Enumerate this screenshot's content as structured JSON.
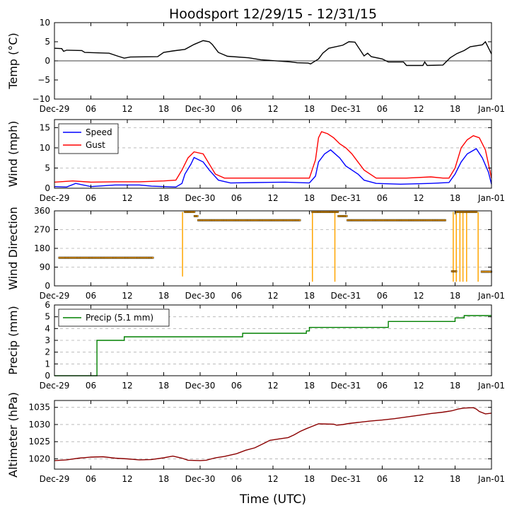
{
  "figure": {
    "title": "Hoodsport 12/29/15 - 12/31/15",
    "xlabel": "Time (UTC)"
  },
  "time_axis": {
    "range_hours": [
      0,
      72
    ],
    "ticks": [
      {
        "h": 0,
        "label": "Dec-29"
      },
      {
        "h": 6,
        "label": "06"
      },
      {
        "h": 12,
        "label": "12"
      },
      {
        "h": 18,
        "label": "18"
      },
      {
        "h": 24,
        "label": "Dec-30"
      },
      {
        "h": 30,
        "label": "06"
      },
      {
        "h": 36,
        "label": "12"
      },
      {
        "h": 42,
        "label": "18"
      },
      {
        "h": 48,
        "label": "Dec-31"
      },
      {
        "h": 54,
        "label": "06"
      },
      {
        "h": 60,
        "label": "12"
      },
      {
        "h": 66,
        "label": "18"
      },
      {
        "h": 72,
        "label": "Jan-01"
      }
    ]
  },
  "colors": {
    "temp": "#000000",
    "speed": "#0000ff",
    "gust": "#ff0000",
    "direction": "#ffa500",
    "precip": "#008000",
    "altimeter": "#8b0000",
    "grid": "#b0b0b0"
  },
  "chart_data": [
    {
      "type": "line",
      "ylabel": "Temp (°C)",
      "ylim": [
        -10,
        10
      ],
      "yticks": [
        {
          "v": 10,
          "label": "10"
        },
        {
          "v": 5,
          "label": "5"
        },
        {
          "v": 0,
          "label": "0"
        },
        {
          "v": -5,
          "label": "−5"
        },
        {
          "v": -10,
          "label": "−10"
        }
      ],
      "zero_line": true,
      "grid": false,
      "series": [
        {
          "color_key": "temp",
          "points": [
            [
              0,
              3.3
            ],
            [
              1.2,
              3.2
            ],
            [
              1.5,
              2.5
            ],
            [
              2,
              2.8
            ],
            [
              4.5,
              2.7
            ],
            [
              5,
              2.2
            ],
            [
              9,
              2.0
            ],
            [
              10.5,
              1.2
            ],
            [
              11.5,
              0.7
            ],
            [
              12.5,
              1.0
            ],
            [
              17,
              1.1
            ],
            [
              18,
              2.2
            ],
            [
              19.5,
              2.6
            ],
            [
              21.5,
              3.0
            ],
            [
              23,
              4.3
            ],
            [
              24.5,
              5.3
            ],
            [
              25.5,
              5.0
            ],
            [
              26,
              4.3
            ],
            [
              27,
              2.2
            ],
            [
              28.5,
              1.2
            ],
            [
              32,
              0.8
            ],
            [
              34,
              0.3
            ],
            [
              39,
              -0.3
            ],
            [
              40,
              -0.5
            ],
            [
              41.8,
              -0.6
            ],
            [
              42.2,
              -0.8
            ],
            [
              42.6,
              -0.4
            ],
            [
              43.5,
              0.5
            ],
            [
              44.2,
              2.0
            ],
            [
              45.2,
              3.3
            ],
            [
              47.5,
              4.1
            ],
            [
              48.5,
              5.0
            ],
            [
              49.5,
              4.9
            ],
            [
              50.3,
              3.0
            ],
            [
              51,
              1.3
            ],
            [
              51.6,
              2.0
            ],
            [
              52.2,
              1.1
            ],
            [
              54,
              0.5
            ],
            [
              55,
              -0.3
            ],
            [
              57.5,
              -0.3
            ],
            [
              58,
              -1.2
            ],
            [
              60.7,
              -1.2
            ],
            [
              61,
              -0.3
            ],
            [
              61.4,
              -1.2
            ],
            [
              64,
              -1.1
            ],
            [
              65.2,
              0.8
            ],
            [
              66.3,
              1.9
            ],
            [
              67.5,
              2.7
            ],
            [
              68.5,
              3.7
            ],
            [
              70.5,
              4.2
            ],
            [
              71,
              5.0
            ],
            [
              71.5,
              3.4
            ],
            [
              72,
              1.8
            ]
          ]
        }
      ]
    },
    {
      "type": "line",
      "ylabel": "Wind (mph)",
      "ylim": [
        0,
        17
      ],
      "yticks": [
        {
          "v": 15,
          "label": "15"
        },
        {
          "v": 10,
          "label": "10"
        },
        {
          "v": 5,
          "label": "5"
        },
        {
          "v": 0,
          "label": "0"
        }
      ],
      "grid": true,
      "legend": {
        "position": "top-left",
        "entries": [
          {
            "label": "Speed",
            "color_key": "speed"
          },
          {
            "label": "Gust",
            "color_key": "gust"
          }
        ]
      },
      "series": [
        {
          "name": "Speed",
          "color_key": "speed",
          "points": [
            [
              0,
              0.4
            ],
            [
              2,
              0.3
            ],
            [
              3.5,
              1.2
            ],
            [
              6,
              0.4
            ],
            [
              10,
              0.8
            ],
            [
              14,
              0.8
            ],
            [
              16,
              0.5
            ],
            [
              20,
              0.3
            ],
            [
              21,
              1.2
            ],
            [
              21.5,
              3.5
            ],
            [
              22.5,
              6.0
            ],
            [
              23,
              7.6
            ],
            [
              24.5,
              6.5
            ],
            [
              25.5,
              4.5
            ],
            [
              27,
              2.0
            ],
            [
              29,
              1.3
            ],
            [
              33,
              1.4
            ],
            [
              38,
              1.5
            ],
            [
              42,
              1.3
            ],
            [
              43,
              3.0
            ],
            [
              43.5,
              6.5
            ],
            [
              44.5,
              8.5
            ],
            [
              45.5,
              9.5
            ],
            [
              47,
              7.5
            ],
            [
              48,
              5.5
            ],
            [
              49,
              4.5
            ],
            [
              50,
              3.5
            ],
            [
              51,
              2.0
            ],
            [
              53,
              1.2
            ],
            [
              57,
              1.0
            ],
            [
              62,
              1.2
            ],
            [
              65,
              1.4
            ],
            [
              66,
              3.5
            ],
            [
              67,
              6.5
            ],
            [
              68,
              8.5
            ],
            [
              69.5,
              9.8
            ],
            [
              70.5,
              7.5
            ],
            [
              71.5,
              4.0
            ],
            [
              72,
              1.0
            ]
          ]
        },
        {
          "name": "Gust",
          "color_key": "gust",
          "points": [
            [
              0,
              1.5
            ],
            [
              3,
              1.8
            ],
            [
              6,
              1.5
            ],
            [
              10,
              1.6
            ],
            [
              14,
              1.6
            ],
            [
              18,
              1.8
            ],
            [
              20,
              2.0
            ],
            [
              21,
              4.5
            ],
            [
              22,
              7.5
            ],
            [
              23,
              9.0
            ],
            [
              24.5,
              8.5
            ],
            [
              25.5,
              6.0
            ],
            [
              26.5,
              3.5
            ],
            [
              28,
              2.5
            ],
            [
              33,
              2.5
            ],
            [
              38,
              2.5
            ],
            [
              42,
              2.5
            ],
            [
              43,
              7.0
            ],
            [
              43.5,
              12.5
            ],
            [
              44,
              14.0
            ],
            [
              45,
              13.5
            ],
            [
              46,
              12.5
            ],
            [
              47,
              11.0
            ],
            [
              48,
              10.0
            ],
            [
              49,
              8.5
            ],
            [
              50,
              6.5
            ],
            [
              51,
              4.5
            ],
            [
              53,
              2.5
            ],
            [
              58,
              2.5
            ],
            [
              62,
              2.8
            ],
            [
              64,
              2.5
            ],
            [
              65,
              2.5
            ],
            [
              66,
              5.0
            ],
            [
              67,
              10.0
            ],
            [
              68,
              12.0
            ],
            [
              69,
              13.0
            ],
            [
              70,
              12.5
            ],
            [
              71,
              9.5
            ],
            [
              72,
              2.5
            ]
          ]
        }
      ]
    },
    {
      "type": "scatter",
      "ylabel": "Wind Direction",
      "ylim": [
        0,
        360
      ],
      "yticks": [
        {
          "v": 360,
          "label": "360"
        },
        {
          "v": 270,
          "label": "270"
        },
        {
          "v": 180,
          "label": "180"
        },
        {
          "v": 90,
          "label": "90"
        },
        {
          "v": 0,
          "label": "0"
        }
      ],
      "grid": true,
      "color_key": "direction",
      "segments": [
        {
          "x0": 0.8,
          "x1": 16.2,
          "y": 135
        },
        {
          "x0": 21.5,
          "x1": 23.1,
          "y": 355
        },
        {
          "x0": 23.1,
          "x1": 23.7,
          "y": 335
        },
        {
          "x0": 23.7,
          "x1": 40.5,
          "y": 315
        },
        {
          "x0": 42.5,
          "x1": 46.8,
          "y": 355
        },
        {
          "x0": 46.8,
          "x1": 48.3,
          "y": 335
        },
        {
          "x0": 48.3,
          "x1": 64.5,
          "y": 315
        },
        {
          "x0": 65.5,
          "x1": 66.2,
          "y": 70
        },
        {
          "x0": 66.2,
          "x1": 69.5,
          "y": 355
        },
        {
          "x0": 70.4,
          "x1": 72,
          "y": 68
        }
      ],
      "spikes": [
        {
          "x": 21.1,
          "from": 355,
          "to": 45
        },
        {
          "x": 42.5,
          "from": 355,
          "to": 20
        },
        {
          "x": 46.2,
          "from": 355,
          "to": 20
        },
        {
          "x": 65.7,
          "from": 355,
          "to": 20
        },
        {
          "x": 66.2,
          "from": 355,
          "to": 20
        },
        {
          "x": 66.8,
          "from": 355,
          "to": 20
        },
        {
          "x": 67.3,
          "from": 355,
          "to": 20
        },
        {
          "x": 67.9,
          "from": 355,
          "to": 20
        },
        {
          "x": 69.8,
          "from": 355,
          "to": 20
        }
      ]
    },
    {
      "type": "line",
      "ylabel": "Precip (mm)",
      "ylim": [
        0,
        6
      ],
      "yticks": [
        {
          "v": 6,
          "label": "6"
        },
        {
          "v": 5,
          "label": "5"
        },
        {
          "v": 4,
          "label": "4"
        },
        {
          "v": 3,
          "label": "3"
        },
        {
          "v": 2,
          "label": "2"
        },
        {
          "v": 1,
          "label": "1"
        },
        {
          "v": 0,
          "label": "0"
        }
      ],
      "grid": true,
      "legend": {
        "position": "top-left",
        "entries": [
          {
            "label": "Precip (5.1 mm)",
            "color_key": "precip"
          }
        ]
      },
      "series": [
        {
          "name": "Precip (5.1 mm)",
          "color_key": "precip",
          "points": [
            [
              0,
              0
            ],
            [
              7,
              0
            ],
            [
              7,
              3.0
            ],
            [
              11.5,
              3.0
            ],
            [
              11.5,
              3.3
            ],
            [
              31,
              3.3
            ],
            [
              31,
              3.6
            ],
            [
              41.5,
              3.6
            ],
            [
              41.5,
              3.8
            ],
            [
              42,
              3.8
            ],
            [
              42,
              4.1
            ],
            [
              55,
              4.1
            ],
            [
              55,
              4.6
            ],
            [
              66,
              4.6
            ],
            [
              66,
              4.9
            ],
            [
              67.5,
              4.9
            ],
            [
              67.5,
              5.1
            ],
            [
              72,
              5.1
            ]
          ]
        }
      ]
    },
    {
      "type": "line",
      "ylabel": "Altimeter (hPa)",
      "ylim": [
        1017,
        1037
      ],
      "yticks": [
        {
          "v": 1035,
          "label": "1035"
        },
        {
          "v": 1030,
          "label": "1030"
        },
        {
          "v": 1025,
          "label": "1025"
        },
        {
          "v": 1020,
          "label": "1020"
        }
      ],
      "grid": true,
      "series": [
        {
          "name": "",
          "color_key": "altimeter",
          "points": [
            [
              0,
              1019.5
            ],
            [
              2,
              1019.7
            ],
            [
              4,
              1020.2
            ],
            [
              6,
              1020.5
            ],
            [
              8,
              1020.6
            ],
            [
              10,
              1020.2
            ],
            [
              12,
              1020.0
            ],
            [
              14,
              1019.7
            ],
            [
              16,
              1019.8
            ],
            [
              18,
              1020.3
            ],
            [
              19.5,
              1020.8
            ],
            [
              21,
              1020.2
            ],
            [
              22,
              1019.6
            ],
            [
              24,
              1019.5
            ],
            [
              25,
              1019.6
            ],
            [
              26.5,
              1020.3
            ],
            [
              28,
              1020.7
            ],
            [
              30,
              1021.5
            ],
            [
              31.5,
              1022.5
            ],
            [
              33,
              1023.2
            ],
            [
              34.5,
              1024.5
            ],
            [
              35.5,
              1025.4
            ],
            [
              37,
              1025.8
            ],
            [
              38.5,
              1026.2
            ],
            [
              39.5,
              1027.0
            ],
            [
              40.5,
              1028.0
            ],
            [
              41.5,
              1028.8
            ],
            [
              42.5,
              1029.5
            ],
            [
              43.5,
              1030.2
            ],
            [
              46,
              1030.1
            ],
            [
              46.5,
              1029.8
            ],
            [
              47.5,
              1030.0
            ],
            [
              48.5,
              1030.3
            ],
            [
              50,
              1030.6
            ],
            [
              52,
              1031.0
            ],
            [
              54,
              1031.3
            ],
            [
              56,
              1031.7
            ],
            [
              58,
              1032.2
            ],
            [
              60,
              1032.7
            ],
            [
              62,
              1033.2
            ],
            [
              64,
              1033.6
            ],
            [
              65.5,
              1034.0
            ],
            [
              66.5,
              1034.5
            ],
            [
              67.5,
              1034.8
            ],
            [
              69,
              1034.9
            ],
            [
              69.5,
              1034.5
            ],
            [
              70,
              1033.8
            ],
            [
              71,
              1033.1
            ],
            [
              72,
              1033.3
            ]
          ]
        }
      ]
    }
  ]
}
